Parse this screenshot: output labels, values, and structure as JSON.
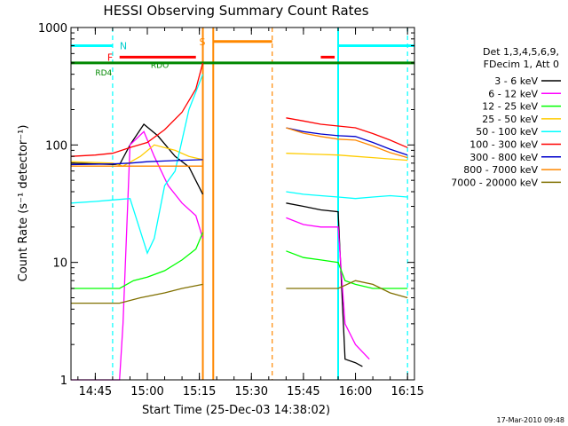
{
  "chart_data": {
    "type": "line",
    "title": "HESSI Observing Summary Count Rates",
    "xlabel": "Start Time (25-Dec-03 14:38:02)",
    "ylabel": "Count Rate (s⁻¹ detector⁻¹)",
    "footer": "17-Mar-2010 09:48",
    "yscale": "log",
    "ylim": [
      1,
      1000
    ],
    "xlim": [
      "14:38",
      "16:17"
    ],
    "ytick_labels": [
      "1",
      "10",
      "100",
      "1000"
    ],
    "xtick_labels": [
      "14:45",
      "15:00",
      "15:15",
      "15:30",
      "15:45",
      "16:00",
      "16:15"
    ],
    "legend_title": [
      "Det 1,3,4,5,6,9,",
      "FDecim 1, Att 0"
    ],
    "legend_position": "right",
    "annotations": {
      "night": "N",
      "saa": "S",
      "flare": "F",
      "rdo": "RDO",
      "rd4": "RD4"
    },
    "series": [
      {
        "name": "3 - 6 keV",
        "color": "#000000",
        "points": [
          [
            "14:38",
            70
          ],
          [
            "14:45",
            69
          ],
          [
            "14:52",
            68
          ],
          [
            "14:55",
            100
          ],
          [
            "14:59",
            150
          ],
          [
            "15:03",
            120
          ],
          [
            "15:08",
            80
          ],
          [
            "15:12",
            65
          ],
          [
            "15:16",
            38
          ],
          [
            "15:40",
            32
          ],
          [
            "15:45",
            30
          ],
          [
            "15:50",
            28
          ],
          [
            "15:55",
            27
          ],
          [
            "15:57",
            1.5
          ],
          [
            "16:00",
            1.4
          ],
          [
            "16:02",
            1.3
          ]
        ]
      },
      {
        "name": "6 - 12 keV",
        "color": "#ff00ff",
        "points": [
          [
            "14:38",
            1
          ],
          [
            "14:52",
            1
          ],
          [
            "14:53",
            3
          ],
          [
            "14:55",
            100
          ],
          [
            "14:59",
            130
          ],
          [
            "15:02",
            80
          ],
          [
            "15:06",
            45
          ],
          [
            "15:10",
            32
          ],
          [
            "15:14",
            25
          ],
          [
            "15:16",
            16
          ],
          [
            "15:40",
            24
          ],
          [
            "15:45",
            21
          ],
          [
            "15:50",
            20
          ],
          [
            "15:55",
            20
          ],
          [
            "15:57",
            3
          ],
          [
            "16:00",
            2
          ],
          [
            "16:04",
            1.5
          ]
        ]
      },
      {
        "name": "12 - 25 keV",
        "color": "#00ff00",
        "points": [
          [
            "14:38",
            6
          ],
          [
            "14:52",
            6
          ],
          [
            "14:56",
            7
          ],
          [
            "15:00",
            7.5
          ],
          [
            "15:05",
            8.5
          ],
          [
            "15:10",
            10.5
          ],
          [
            "15:14",
            13
          ],
          [
            "15:16",
            18
          ],
          [
            "15:40",
            12.5
          ],
          [
            "15:45",
            11
          ],
          [
            "15:50",
            10.5
          ],
          [
            "15:55",
            10
          ],
          [
            "15:57",
            7
          ],
          [
            "16:00",
            6.5
          ],
          [
            "16:05",
            6
          ],
          [
            "16:10",
            6
          ],
          [
            "16:15",
            6
          ]
        ]
      },
      {
        "name": "25 - 50 keV",
        "color": "#ffcc00",
        "points": [
          [
            "14:38",
            72
          ],
          [
            "14:50",
            70
          ],
          [
            "14:53",
            66
          ],
          [
            "14:58",
            80
          ],
          [
            "15:02",
            100
          ],
          [
            "15:08",
            90
          ],
          [
            "15:12",
            80
          ],
          [
            "15:16",
            75
          ],
          [
            "15:40",
            85
          ],
          [
            "15:45",
            84
          ],
          [
            "15:50",
            83
          ],
          [
            "15:55",
            82
          ],
          [
            "16:00",
            80
          ],
          [
            "16:05",
            78
          ],
          [
            "16:10",
            76
          ],
          [
            "16:15",
            74
          ]
        ]
      },
      {
        "name": "50 - 100 keV",
        "color": "#00ffff",
        "points": [
          [
            "14:38",
            32
          ],
          [
            "14:45",
            33
          ],
          [
            "14:50",
            34
          ],
          [
            "14:55",
            35
          ],
          [
            "15:00",
            12
          ],
          [
            "15:02",
            16
          ],
          [
            "15:05",
            45
          ],
          [
            "15:08",
            60
          ],
          [
            "15:12",
            200
          ],
          [
            "15:16",
            400
          ],
          [
            "15:40",
            40
          ],
          [
            "15:45",
            38
          ],
          [
            "15:50",
            37
          ],
          [
            "15:55",
            36
          ],
          [
            "16:00",
            35
          ],
          [
            "16:05",
            36
          ],
          [
            "16:10",
            37
          ],
          [
            "16:15",
            36
          ]
        ]
      },
      {
        "name": "100 - 300 keV",
        "color": "#ff0000",
        "points": [
          [
            "14:38",
            80
          ],
          [
            "14:45",
            82
          ],
          [
            "14:50",
            85
          ],
          [
            "14:55",
            95
          ],
          [
            "15:00",
            105
          ],
          [
            "15:05",
            135
          ],
          [
            "15:10",
            190
          ],
          [
            "15:14",
            300
          ],
          [
            "15:16",
            500
          ],
          [
            "15:40",
            170
          ],
          [
            "15:45",
            160
          ],
          [
            "15:50",
            150
          ],
          [
            "15:55",
            145
          ],
          [
            "16:00",
            140
          ],
          [
            "16:05",
            125
          ],
          [
            "16:10",
            110
          ],
          [
            "16:15",
            95
          ]
        ]
      },
      {
        "name": "300 - 800 keV",
        "color": "#0000cc",
        "points": [
          [
            "14:38",
            68
          ],
          [
            "14:50",
            69
          ],
          [
            "14:55",
            70
          ],
          [
            "15:00",
            72
          ],
          [
            "15:05",
            73
          ],
          [
            "15:10",
            74
          ],
          [
            "15:16",
            75
          ],
          [
            "15:40",
            140
          ],
          [
            "15:45",
            130
          ],
          [
            "15:50",
            124
          ],
          [
            "15:55",
            120
          ],
          [
            "16:00",
            118
          ],
          [
            "16:05",
            105
          ],
          [
            "16:10",
            92
          ],
          [
            "16:15",
            82
          ]
        ]
      },
      {
        "name": "800 - 7000 keV",
        "color": "#ff8800",
        "points": [
          [
            "14:38",
            66
          ],
          [
            "14:50",
            66
          ],
          [
            "15:00",
            66
          ],
          [
            "15:10",
            66
          ],
          [
            "15:16",
            66
          ],
          [
            "15:40",
            140
          ],
          [
            "15:45",
            126
          ],
          [
            "15:50",
            118
          ],
          [
            "15:55",
            112
          ],
          [
            "16:00",
            110
          ],
          [
            "16:05",
            98
          ],
          [
            "16:10",
            86
          ],
          [
            "16:15",
            78
          ]
        ]
      },
      {
        "name": "7000 - 20000 keV",
        "color": "#807000",
        "points": [
          [
            "14:38",
            4.5
          ],
          [
            "14:52",
            4.5
          ],
          [
            "14:58",
            5
          ],
          [
            "15:05",
            5.5
          ],
          [
            "15:10",
            6
          ],
          [
            "15:16",
            6.5
          ],
          [
            "15:40",
            6
          ],
          [
            "15:45",
            6
          ],
          [
            "15:50",
            6
          ],
          [
            "15:55",
            6
          ],
          [
            "16:00",
            7
          ],
          [
            "16:05",
            6.5
          ],
          [
            "16:10",
            5.5
          ],
          [
            "16:15",
            5
          ]
        ]
      }
    ],
    "state_bars": [
      {
        "label": "N",
        "color": "#00ffff",
        "value": 700,
        "segments": [
          [
            "14:38",
            "14:50"
          ],
          [
            "15:55",
            "16:17"
          ]
        ]
      },
      {
        "label": "F",
        "color": "#ff0000",
        "value": 560,
        "segments": [
          [
            "14:52",
            "15:14"
          ],
          [
            "15:50",
            "15:54"
          ]
        ]
      },
      {
        "label": "S",
        "color": "#ff8800",
        "value": 760,
        "segments": [
          [
            "15:19",
            "15:36"
          ]
        ]
      },
      {
        "label": "RD4",
        "color": "#008800",
        "value": 500,
        "segments": [
          [
            "14:38",
            "16:17"
          ]
        ]
      }
    ],
    "vertical_markers": [
      {
        "time": "14:50",
        "color": "#00ffff",
        "style": "dashed"
      },
      {
        "time": "15:16",
        "color": "#ff8800",
        "style": "solid"
      },
      {
        "time": "15:19",
        "color": "#ff8800",
        "style": "solid"
      },
      {
        "time": "15:36",
        "color": "#ff8800",
        "style": "dashed"
      },
      {
        "time": "15:55",
        "color": "#00ffff",
        "style": "solid"
      },
      {
        "time": "16:15",
        "color": "#00ffff",
        "style": "dashed"
      }
    ]
  }
}
